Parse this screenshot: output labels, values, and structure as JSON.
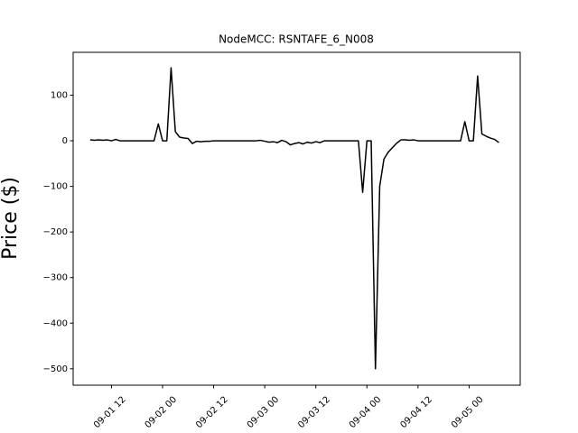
{
  "chart_data": {
    "type": "line",
    "title": "NodeMCC: RSNTAFE_6_N008",
    "y_label": "Price ($)",
    "x": [
      "09-01 07",
      "09-01 08",
      "09-01 09",
      "09-01 10",
      "09-01 11",
      "09-01 12",
      "09-01 13",
      "09-01 14",
      "09-01 15",
      "09-01 16",
      "09-01 17",
      "09-01 18",
      "09-01 19",
      "09-01 20",
      "09-01 21",
      "09-01 22",
      "09-01 23",
      "09-02 00",
      "09-02 01",
      "09-02 02",
      "09-02 03",
      "09-02 04",
      "09-02 05",
      "09-02 06",
      "09-02 07",
      "09-02 08",
      "09-02 09",
      "09-02 10",
      "09-02 11",
      "09-02 12",
      "09-02 13",
      "09-02 14",
      "09-02 15",
      "09-02 16",
      "09-02 17",
      "09-02 18",
      "09-02 19",
      "09-02 20",
      "09-02 21",
      "09-02 22",
      "09-02 23",
      "09-03 00",
      "09-03 01",
      "09-03 02",
      "09-03 03",
      "09-03 04",
      "09-03 05",
      "09-03 06",
      "09-03 07",
      "09-03 08",
      "09-03 09",
      "09-03 10",
      "09-03 11",
      "09-03 12",
      "09-03 13",
      "09-03 14",
      "09-03 15",
      "09-03 16",
      "09-03 17",
      "09-03 18",
      "09-03 19",
      "09-03 20",
      "09-03 21",
      "09-03 22",
      "09-03 23",
      "09-04 00",
      "09-04 01",
      "09-04 02",
      "09-04 03",
      "09-04 04",
      "09-04 05",
      "09-04 06",
      "09-04 07",
      "09-04 08",
      "09-04 09",
      "09-04 10",
      "09-04 11",
      "09-04 12",
      "09-04 13",
      "09-04 14",
      "09-04 15",
      "09-04 16",
      "09-04 17",
      "09-04 18",
      "09-04 19",
      "09-04 20",
      "09-04 21",
      "09-04 22",
      "09-04 23",
      "09-05 00",
      "09-05 01",
      "09-05 02",
      "09-05 03",
      "09-05 04",
      "09-05 05",
      "09-05 06",
      "09-05 07"
    ],
    "series": [
      {
        "color": "#000000",
        "values": [
          2,
          1,
          2,
          1,
          2,
          0,
          3,
          0,
          0,
          0,
          0,
          0,
          0,
          0,
          0,
          0,
          37,
          0,
          0,
          160,
          20,
          8,
          6,
          5,
          -6,
          -1,
          -2,
          -1,
          -1,
          0,
          0,
          0,
          0,
          0,
          0,
          0,
          0,
          0,
          0,
          0,
          1,
          -1,
          -3,
          -2,
          -4,
          1,
          -2,
          -9,
          -6,
          -4,
          -7,
          -3,
          -5,
          -2,
          -4,
          0,
          0,
          0,
          0,
          0,
          0,
          0,
          0,
          0,
          -113,
          0,
          0,
          -500,
          -100,
          -40,
          -25,
          -15,
          -5,
          2,
          2,
          1,
          2,
          0,
          0,
          0,
          0,
          0,
          0,
          0,
          0,
          0,
          0,
          0,
          42,
          0,
          0,
          142,
          15,
          10,
          6,
          3,
          -4
        ]
      }
    ],
    "xlim": [
      "09-01 03",
      "09-05 12"
    ],
    "xticks": [
      "09-01 12",
      "09-02 00",
      "09-02 12",
      "09-03 00",
      "09-03 12",
      "09-04 00",
      "09-04 12",
      "09-05 00"
    ],
    "ylim": [
      -536,
      194
    ],
    "yticks": [
      {
        "value": -500,
        "label": "−500"
      },
      {
        "value": -400,
        "label": "−400"
      },
      {
        "value": -300,
        "label": "−300"
      },
      {
        "value": -200,
        "label": "−200"
      },
      {
        "value": -100,
        "label": "−100"
      },
      0,
      100
    ]
  }
}
